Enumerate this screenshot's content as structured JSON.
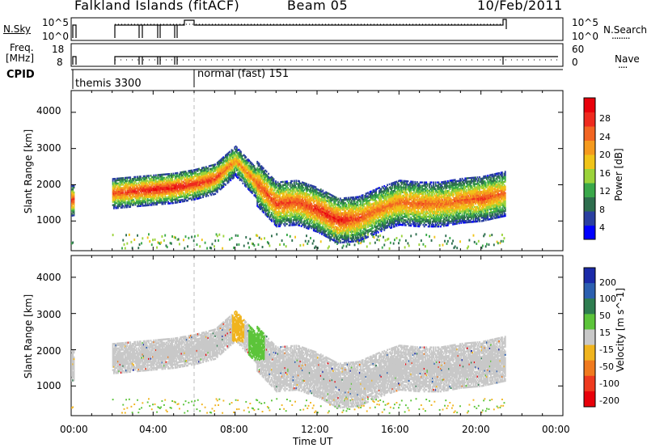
{
  "header": {
    "station": "Falkland Islands (fitACF)",
    "beam": "Beam 05",
    "date": "10/Feb/2011"
  },
  "nsky_panel": {
    "left_label": "N.Sky",
    "left_ticks": [
      "10^5",
      "10^0"
    ],
    "right_ticks": [
      "10^5",
      "10^0"
    ],
    "right_label": "N.Search",
    "right_dots": "........"
  },
  "freq_panel": {
    "left_label_line1": "Freq.",
    "left_label_line2": "[MHz]",
    "left_ticks": [
      "18",
      "8"
    ],
    "right_ticks": [
      "60",
      "0"
    ],
    "right_label": "Nave",
    "right_dots": "...."
  },
  "cpid_panel": {
    "label": "CPID",
    "modes": [
      {
        "name": "themis 3300",
        "start_hour": 0
      },
      {
        "name": "normal (fast) 151",
        "start_hour": 6
      }
    ]
  },
  "panels": {
    "y_label": "Slant Range [km]",
    "y_ticks": [
      "1000",
      "2000",
      "3000",
      "4000"
    ],
    "x_ticks": [
      "00:00",
      "04:00",
      "08:00",
      "12:00",
      "16:00",
      "20:00",
      "00:00"
    ],
    "x_label": "Time UT"
  },
  "power_scale": {
    "label": "Power [dB]",
    "ticks": [
      "4",
      "8",
      "12",
      "16",
      "20",
      "24",
      "28"
    ],
    "colors": [
      "#0000ff",
      "#2a3fa0",
      "#2e6e4e",
      "#3aa84a",
      "#9bd33a",
      "#f0c419",
      "#f59a1e",
      "#f26522",
      "#ee2a1e",
      "#e8000a"
    ]
  },
  "velocity_scale": {
    "label": "Velocity [m s^-1]",
    "ticks": [
      "200",
      "100",
      "50",
      "15",
      "-15",
      "-50",
      "-100",
      "-200"
    ],
    "colors": [
      "#1a2aa8",
      "#2b5fb0",
      "#2e7d50",
      "#5cc43a",
      "#c8c8c8",
      "#f0b41e",
      "#f07a1e",
      "#ee3a1e",
      "#e8000a"
    ]
  },
  "chart_data": {
    "type": "heatmap",
    "title": "Falkland Islands (fitACF) Beam 05 10/Feb/2011",
    "xlabel": "Time UT",
    "ylabel": "Slant Range [km]",
    "xlim_hours": [
      0,
      24
    ],
    "ylim_km": [
      180,
      4600
    ],
    "grid": false,
    "power_echo_band": {
      "hours": [
        0.0,
        2.0,
        3.0,
        4.0,
        5.0,
        6.0,
        7.0,
        8.0,
        9.0,
        10.0,
        11.0,
        12.0,
        13.0,
        14.0,
        15.0,
        16.0,
        17.0,
        18.0,
        19.0,
        20.0,
        21.2
      ],
      "center_km": [
        1550,
        1750,
        1800,
        1850,
        1900,
        2000,
        2150,
        2650,
        2050,
        1450,
        1500,
        1300,
        1000,
        1050,
        1300,
        1500,
        1450,
        1450,
        1550,
        1600,
        1750
      ],
      "peak_power_db": [
        26,
        24,
        26,
        27,
        27,
        26,
        25,
        20,
        23,
        25,
        24,
        26,
        27,
        24,
        22,
        22,
        23,
        22,
        23,
        24,
        22
      ]
    },
    "velocity_note_values_m_s": {
      "main_band": "-15 to 15",
      "feature_0800": "-50 to -15",
      "feature_0900": "15 to 50"
    }
  }
}
